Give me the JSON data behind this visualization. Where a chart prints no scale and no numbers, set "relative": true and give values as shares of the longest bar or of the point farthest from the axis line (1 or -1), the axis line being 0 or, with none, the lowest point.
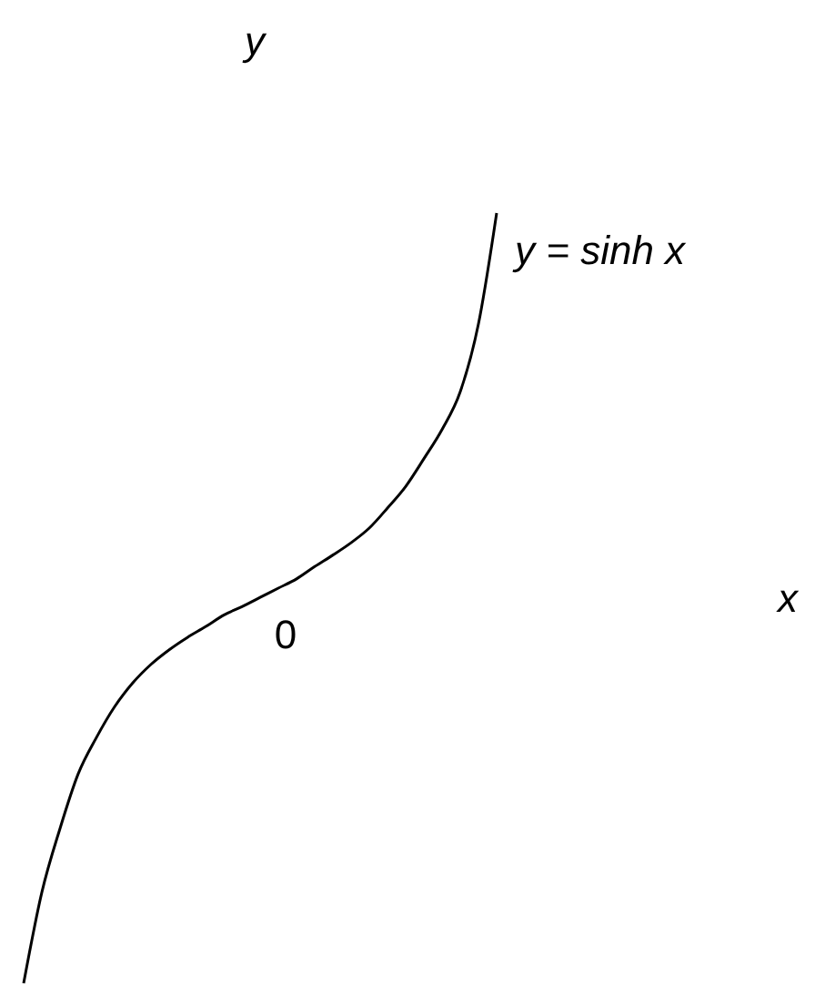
{
  "chart_data": {
    "type": "line",
    "relative": true,
    "annotations": [
      "y",
      "x",
      "0"
    ],
    "categories": [
      null,
      null,
      null,
      null,
      null,
      null,
      null,
      null,
      null,
      null,
      null,
      null,
      null,
      null,
      null,
      null,
      null,
      null,
      null,
      null,
      null,
      null,
      null,
      null,
      null,
      null,
      null
    ],
    "series": [
      {
        "name": "y = sinh x",
        "color": "#000000",
        "values": [
          0,
          0.118,
          0.201,
          0.272,
          0.319,
          0.359,
          0.39,
          0.414,
          0.433,
          0.449,
          0.463,
          0.478,
          0.489,
          0.501,
          0.513,
          0.525,
          0.541,
          0.556,
          0.572,
          0.591,
          0.617,
          0.645,
          0.681,
          0.719,
          0.768,
          0.856,
          1
        ]
      }
    ],
    "marker": "none",
    "line_style": "solid"
  }
}
